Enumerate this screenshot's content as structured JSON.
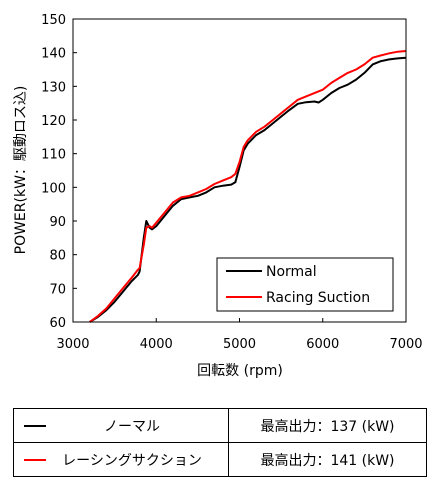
{
  "chart_data": {
    "type": "line",
    "xlabel": "回転数 (rpm)",
    "ylabel": "POWER(kW：駆動ロス込)",
    "xlim": [
      3000,
      7000
    ],
    "ylim": [
      60,
      150
    ],
    "xticks": [
      "3000",
      "4000",
      "5000",
      "6000",
      "7000"
    ],
    "yticks": [
      "60",
      "70",
      "80",
      "90",
      "100",
      "110",
      "120",
      "130",
      "140",
      "150"
    ],
    "grid": false,
    "legend_position": "bottom-right",
    "series": [
      {
        "name": "Normal",
        "color": "#000000",
        "points": [
          [
            3200,
            60
          ],
          [
            3300,
            61.5
          ],
          [
            3400,
            63.5
          ],
          [
            3500,
            66
          ],
          [
            3600,
            69
          ],
          [
            3700,
            72
          ],
          [
            3780,
            74
          ],
          [
            3800,
            75
          ],
          [
            3850,
            85
          ],
          [
            3880,
            90
          ],
          [
            3920,
            88
          ],
          [
            3950,
            87.5
          ],
          [
            4000,
            88.5
          ],
          [
            4100,
            91.5
          ],
          [
            4200,
            94.5
          ],
          [
            4300,
            96.5
          ],
          [
            4400,
            97
          ],
          [
            4500,
            97.5
          ],
          [
            4600,
            98.5
          ],
          [
            4700,
            100
          ],
          [
            4800,
            100.5
          ],
          [
            4900,
            100.8
          ],
          [
            4950,
            101.5
          ],
          [
            5000,
            106
          ],
          [
            5050,
            111
          ],
          [
            5100,
            113
          ],
          [
            5200,
            115.5
          ],
          [
            5300,
            117
          ],
          [
            5400,
            119
          ],
          [
            5500,
            121
          ],
          [
            5600,
            123
          ],
          [
            5700,
            124.8
          ],
          [
            5800,
            125.3
          ],
          [
            5900,
            125.5
          ],
          [
            5950,
            125.2
          ],
          [
            6000,
            126
          ],
          [
            6100,
            128
          ],
          [
            6200,
            129.5
          ],
          [
            6300,
            130.5
          ],
          [
            6400,
            132
          ],
          [
            6500,
            134
          ],
          [
            6600,
            136.5
          ],
          [
            6700,
            137.5
          ],
          [
            6800,
            138
          ],
          [
            6900,
            138.3
          ],
          [
            7000,
            138.5
          ]
        ]
      },
      {
        "name": "Racing Suction",
        "color": "#ff0000",
        "points": [
          [
            3200,
            60
          ],
          [
            3300,
            61.8
          ],
          [
            3400,
            64
          ],
          [
            3500,
            67
          ],
          [
            3600,
            70
          ],
          [
            3700,
            73
          ],
          [
            3780,
            75.5
          ],
          [
            3800,
            76
          ],
          [
            3850,
            83
          ],
          [
            3880,
            88
          ],
          [
            3920,
            88.5
          ],
          [
            3950,
            88
          ],
          [
            4000,
            89.5
          ],
          [
            4100,
            92.5
          ],
          [
            4200,
            95.5
          ],
          [
            4300,
            97
          ],
          [
            4400,
            97.5
          ],
          [
            4500,
            98.5
          ],
          [
            4600,
            99.5
          ],
          [
            4700,
            101
          ],
          [
            4800,
            102
          ],
          [
            4900,
            103
          ],
          [
            4950,
            104
          ],
          [
            5000,
            107.5
          ],
          [
            5050,
            112
          ],
          [
            5100,
            114
          ],
          [
            5200,
            116.5
          ],
          [
            5300,
            118
          ],
          [
            5400,
            120
          ],
          [
            5500,
            122
          ],
          [
            5600,
            124
          ],
          [
            5700,
            126
          ],
          [
            5800,
            127
          ],
          [
            5900,
            128
          ],
          [
            6000,
            129
          ],
          [
            6100,
            131
          ],
          [
            6200,
            132.5
          ],
          [
            6300,
            134
          ],
          [
            6400,
            135
          ],
          [
            6500,
            136.5
          ],
          [
            6600,
            138.5
          ],
          [
            6700,
            139.2
          ],
          [
            6800,
            139.8
          ],
          [
            6900,
            140.3
          ],
          [
            7000,
            140.5
          ]
        ]
      }
    ]
  },
  "summary_table": {
    "rows": [
      {
        "name": "ノーマル",
        "power": "最高出力：137 (kW)",
        "color": "#000000"
      },
      {
        "name": "レーシングサクション",
        "power": "最高出力：141 (kW)",
        "color": "#ff0000"
      }
    ]
  }
}
